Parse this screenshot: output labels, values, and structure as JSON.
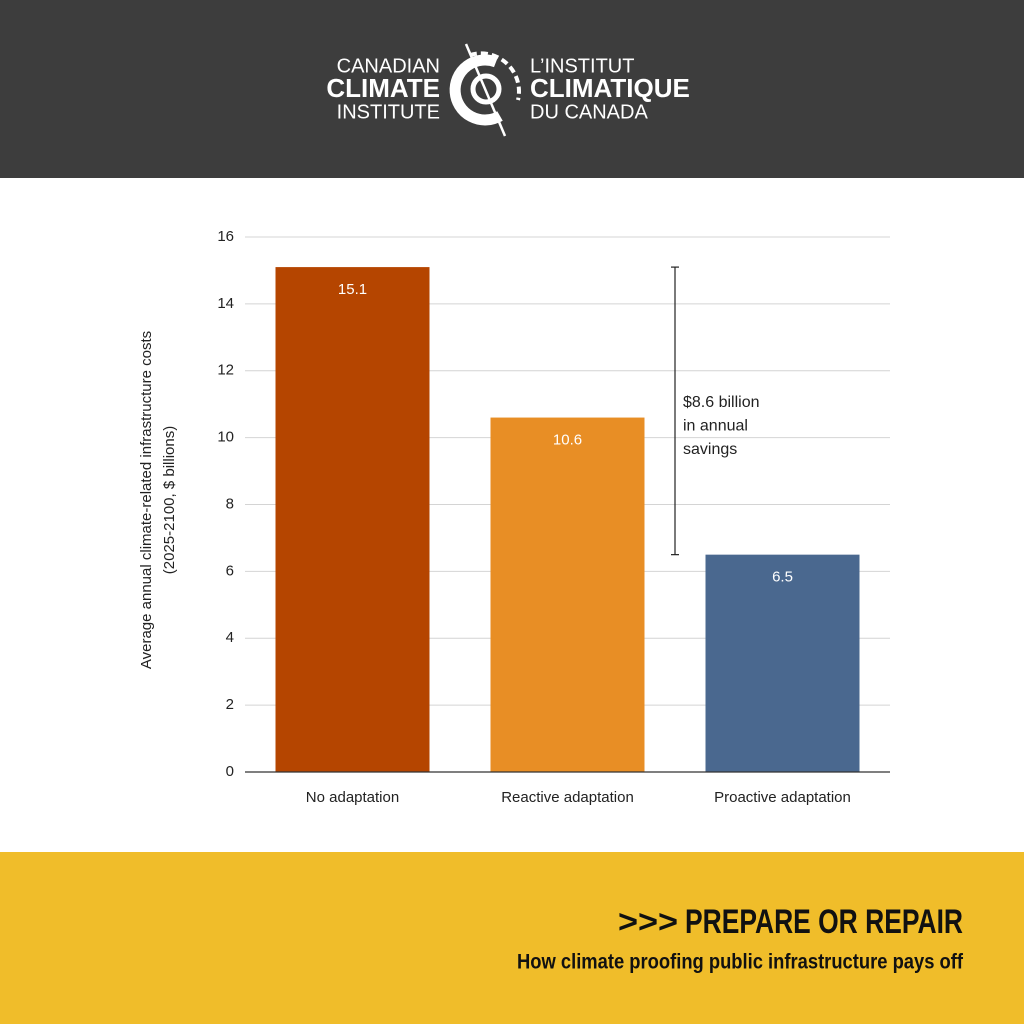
{
  "header": {
    "left": [
      "CANADIAN",
      "CLIMATE",
      "INSTITUTE"
    ],
    "right": [
      "L’INSTITUT",
      "CLIMATIQUE",
      "DU CANADA"
    ]
  },
  "chart_data": {
    "type": "bar",
    "ylabel": [
      "Average annual climate-related infrastructure costs",
      "(2025-2100, $ billions)"
    ],
    "categories": [
      "No adaptation",
      "Reactive adaptation",
      "Proactive adaptation"
    ],
    "values": [
      15.1,
      10.6,
      6.5
    ],
    "colors": [
      "#b54500",
      "#e88e25",
      "#4a688f"
    ],
    "ylim": [
      0,
      16
    ],
    "yticks": [
      0,
      2,
      4,
      6,
      8,
      10,
      12,
      14,
      16
    ],
    "grid": true,
    "annotation": [
      "$8.6 billion",
      "in annual",
      "savings"
    ]
  },
  "footer": {
    "arrows": ">>>",
    "title": "PREPARE OR REPAIR",
    "subtitle": "How climate proofing public infrastructure pays off"
  }
}
